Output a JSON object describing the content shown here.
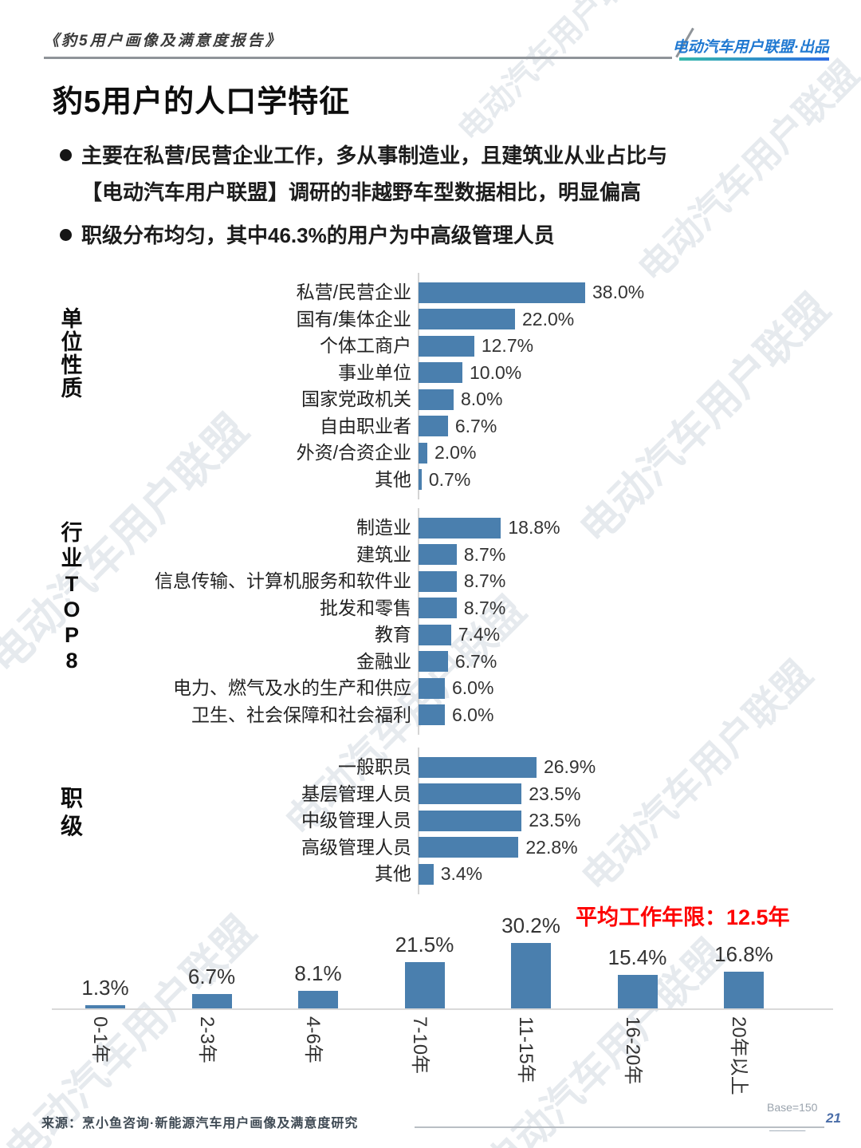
{
  "header": {
    "report_title": "《豹5用户画像及满意度报告》",
    "brand": "电动汽车用户联盟·出品"
  },
  "page": {
    "title": "豹5用户的人口学特征",
    "bullets": [
      {
        "lines": [
          "主要在私营/民营企业工作，多从事制造业，且建筑业从业占比与",
          "【电动汽车用户联盟】调研的非越野车型数据相比，明显偏高"
        ]
      },
      {
        "lines": [
          "职级分布均匀，其中46.3%的用户为中高级管理人员"
        ]
      }
    ]
  },
  "chart_data": [
    {
      "type": "bar",
      "orientation": "horizontal",
      "group_label": "单位性质",
      "categories": [
        "私营/民营企业",
        "国有/集体企业",
        "个体工商户",
        "事业单位",
        "国家党政机关",
        "自由职业者",
        "外资/合资企业",
        "其他"
      ],
      "values": [
        38.0,
        22.0,
        12.7,
        10.0,
        8.0,
        6.7,
        2.0,
        0.7
      ],
      "value_labels": [
        "38.0%",
        "22.0%",
        "12.7%",
        "10.0%",
        "8.0%",
        "6.7%",
        "2.0%",
        "0.7%"
      ]
    },
    {
      "type": "bar",
      "orientation": "horizontal",
      "group_label": "行业TOP8",
      "categories": [
        "制造业",
        "建筑业",
        "信息传输、计算机服务和软件业",
        "批发和零售",
        "教育",
        "金融业",
        "电力、燃气及水的生产和供应",
        "卫生、社会保障和社会福利"
      ],
      "values": [
        18.8,
        8.7,
        8.7,
        8.7,
        7.4,
        6.7,
        6.0,
        6.0
      ],
      "value_labels": [
        "18.8%",
        "8.7%",
        "8.7%",
        "8.7%",
        "7.4%",
        "6.7%",
        "6.0%",
        "6.0%"
      ]
    },
    {
      "type": "bar",
      "orientation": "horizontal",
      "group_label": "职级",
      "categories": [
        "一般职员",
        "基层管理人员",
        "中级管理人员",
        "高级管理人员",
        "其他"
      ],
      "values": [
        26.9,
        23.5,
        23.5,
        22.8,
        3.4
      ],
      "value_labels": [
        "26.9%",
        "23.5%",
        "23.5%",
        "22.8%",
        "3.4%"
      ]
    },
    {
      "type": "bar",
      "orientation": "vertical",
      "categories": [
        "0-1年",
        "2-3年",
        "4-6年",
        "7-10年",
        "11-15年",
        "16-20年",
        "20年以上"
      ],
      "values": [
        1.3,
        6.7,
        8.1,
        21.5,
        30.2,
        15.4,
        16.8
      ],
      "value_labels": [
        "1.3%",
        "6.7%",
        "8.1%",
        "21.5%",
        "30.2%",
        "15.4%",
        "16.8%"
      ],
      "annotation": "平均工作年限：12.5年"
    }
  ],
  "colors": {
    "bar": "#4a7fae",
    "annotation_red": "#fe0000",
    "brand_blue": "#1f78d1"
  },
  "watermark": {
    "text": "电动汽车用户联盟"
  },
  "footer": {
    "source": "来源：烹小鱼咨询·新能源汽车用户画像及满意度研究",
    "base": "Base=150",
    "page_number": "21"
  }
}
